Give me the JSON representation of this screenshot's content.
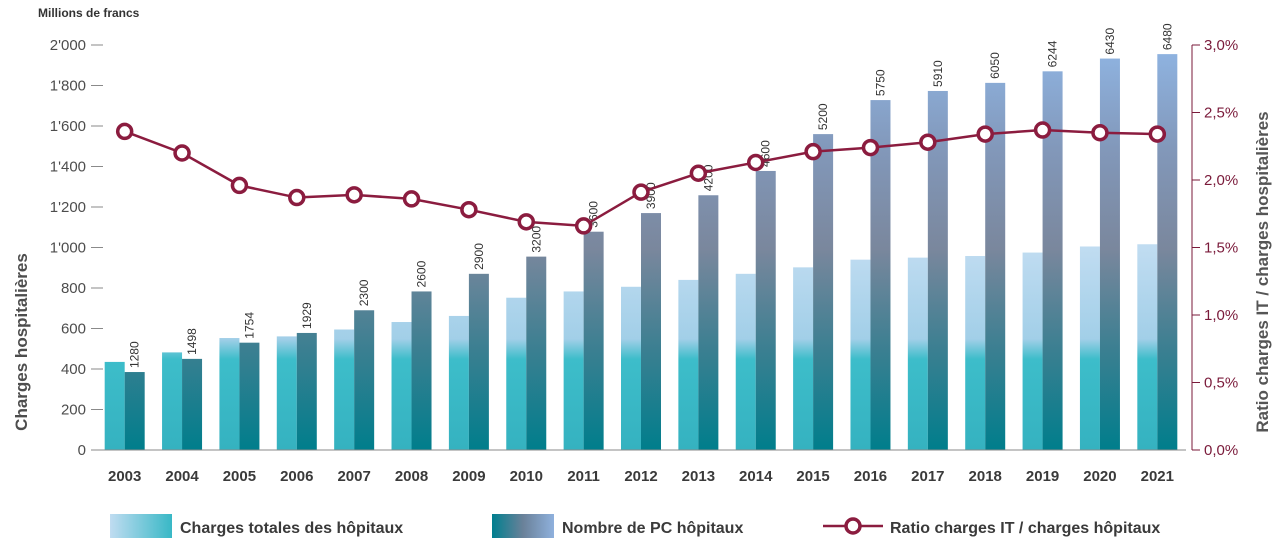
{
  "chart_data": {
    "type": "bar",
    "unit_label": "Millions de francs",
    "ylabel": "Charges hospitalières",
    "y2label": "Ratio charges IT / charges hospitalières",
    "xlabel": "",
    "categories": [
      "2003",
      "2004",
      "2005",
      "2006",
      "2007",
      "2008",
      "2009",
      "2010",
      "2011",
      "2012",
      "2013",
      "2014",
      "2015",
      "2016",
      "2017",
      "2018",
      "2019",
      "2020",
      "2021"
    ],
    "ylim": [
      0,
      2000
    ],
    "y_ticks": [
      "0",
      "200",
      "400",
      "600",
      "800",
      "1'000",
      "1'200",
      "1'400",
      "1'600",
      "1'800",
      "2'000"
    ],
    "y2lim": [
      0,
      3.0
    ],
    "y2_ticks": [
      "0,0%",
      "0,5%",
      "1,0%",
      "1,5%",
      "2,0%",
      "2,5%",
      "3,0%"
    ],
    "series": [
      {
        "name": "Charges totales des hôpitaux",
        "type": "bar",
        "axis": "left",
        "values": [
          435,
          482,
          553,
          561,
          595,
          632,
          662,
          752,
          783,
          806,
          840,
          870,
          902,
          940,
          950,
          958,
          975,
          1005,
          1016
        ]
      },
      {
        "name": "Nombre de PC hôpitaux",
        "type": "bar",
        "axis": "left",
        "values": [
          385,
          450,
          530,
          578,
          690,
          783,
          870,
          955,
          1078,
          1170,
          1258,
          1378,
          1560,
          1728,
          1773,
          1813,
          1870,
          1933,
          1955
        ],
        "labels": [
          "1280",
          "1498",
          "1754",
          "1929",
          "2300",
          "2600",
          "2900",
          "3200",
          "3600",
          "3900",
          "4200",
          "4600",
          "5200",
          "5750",
          "5910",
          "6050",
          "6244",
          "6430",
          "6480"
        ]
      },
      {
        "name": "Ratio charges IT / charges hôpitaux",
        "type": "line",
        "axis": "right",
        "values": [
          2.36,
          2.2,
          1.96,
          1.87,
          1.89,
          1.86,
          1.78,
          1.69,
          1.66,
          1.91,
          2.05,
          2.13,
          2.21,
          2.24,
          2.28,
          2.34,
          2.37,
          2.35,
          2.34
        ]
      }
    ],
    "grid": false,
    "legend_position": "bottom",
    "colors": {
      "charges_light": "#b9d7ef",
      "charges_dark": "#3bbcc8",
      "pc_top": "#8fb1dd",
      "pc_mid": "#7b889f",
      "pc_bottom": "#007f8f",
      "ratio_line": "#8b1c3f",
      "axis": "#8a8a8a",
      "right_axis": "#7a1a3a"
    }
  }
}
